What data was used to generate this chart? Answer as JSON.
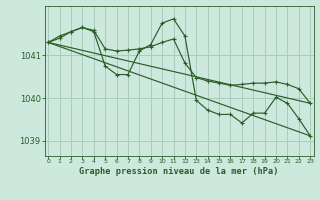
{
  "title": "Graphe pression niveau de la mer (hPa)",
  "bg_color": "#cde8dc",
  "grid_color": "#a8ccbc",
  "line_color": "#2a5e2a",
  "x_values": [
    0,
    1,
    2,
    3,
    4,
    5,
    6,
    7,
    8,
    9,
    10,
    11,
    12,
    13,
    14,
    15,
    16,
    17,
    18,
    19,
    20,
    21,
    22,
    23
  ],
  "series1": [
    1041.3,
    1041.4,
    1041.55,
    1041.65,
    1041.55,
    1040.75,
    1040.55,
    1040.55,
    1041.1,
    1041.25,
    1041.75,
    1041.85,
    1041.45,
    1039.95,
    1039.72,
    1039.62,
    1039.62,
    1039.42,
    1039.65,
    1039.65,
    1040.02,
    1039.88,
    1039.52,
    1039.12
  ],
  "series2": [
    1041.3,
    1041.45,
    1041.55,
    1041.65,
    1041.58,
    1041.15,
    1041.1,
    1041.12,
    1041.15,
    1041.2,
    1041.3,
    1041.38,
    1040.82,
    1040.48,
    1040.4,
    1040.35,
    1040.3,
    1040.32,
    1040.35,
    1040.35,
    1040.38,
    1040.32,
    1040.22,
    1039.88
  ],
  "line1": [
    [
      0,
      23
    ],
    [
      1041.3,
      1039.12
    ]
  ],
  "line2": [
    [
      0,
      23
    ],
    [
      1041.3,
      1039.88
    ]
  ],
  "ylim": [
    1038.65,
    1042.15
  ],
  "yticks": [
    1039,
    1040,
    1041
  ],
  "xlim": [
    -0.3,
    23.3
  ]
}
